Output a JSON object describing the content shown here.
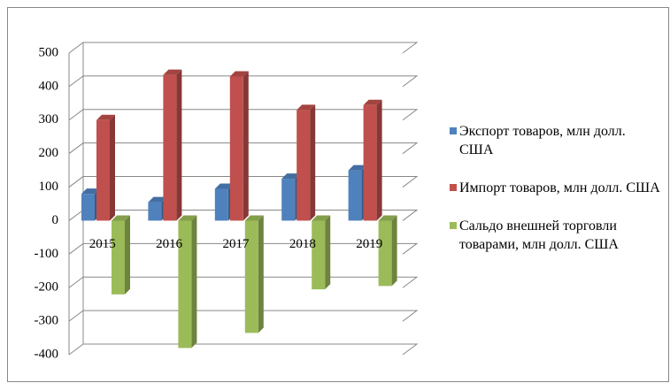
{
  "chart_data": {
    "type": "bar3d",
    "categories": [
      "2015",
      "2016",
      "2017",
      "2018",
      "2019"
    ],
    "series": [
      {
        "name": "Экспорт товаров, млн долл. США",
        "color": "#4f81bd",
        "values": [
          80,
          55,
          95,
          125,
          150
        ]
      },
      {
        "name": "Импорт товаров, млн долл. США",
        "color": "#c0504d",
        "values": [
          300,
          435,
          430,
          330,
          345
        ]
      },
      {
        "name": "Сальдо внешней торговли товарами, млн долл. США",
        "color": "#9bbb59",
        "values": [
          -220,
          -380,
          -335,
          -205,
          -195
        ]
      }
    ],
    "ylim": [
      -400,
      500
    ],
    "yticks": [
      500,
      400,
      300,
      200,
      100,
      0,
      -100,
      -200,
      -300,
      -400
    ],
    "grid": true
  }
}
